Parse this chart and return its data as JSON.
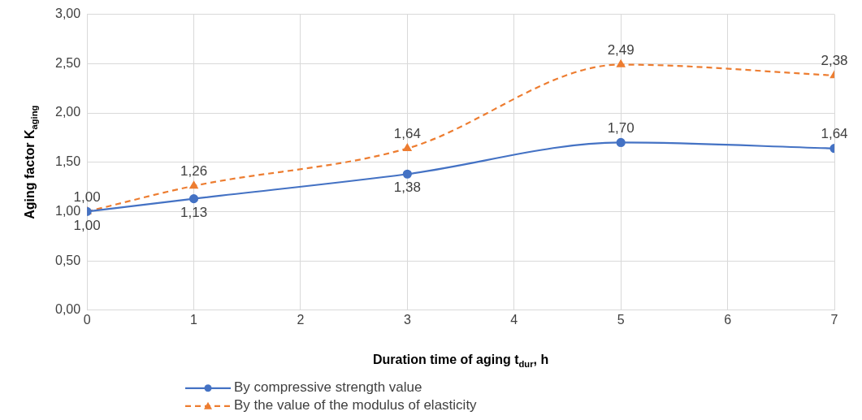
{
  "chart_data": {
    "type": "line",
    "xlabel": "Duration time of aging t$_{dur}$, h",
    "ylabel": "Aging factor K$_{aging}$",
    "x": [
      0,
      1,
      3,
      5,
      7
    ],
    "series": [
      {
        "name": "By compressive strength value",
        "color": "#4472c4",
        "marker": "circle",
        "line_style": "solid",
        "values": [
          1.0,
          1.13,
          1.38,
          1.7,
          1.64
        ],
        "value_labels": [
          "1,00",
          "1,13",
          "1,38",
          "1,70",
          "1,64"
        ]
      },
      {
        "name": "By the value of the modulus of elasticity",
        "color": "#ed7d31",
        "marker": "triangle",
        "line_style": "dashed",
        "values": [
          1.0,
          1.26,
          1.64,
          2.49,
          2.38
        ],
        "value_labels": [
          "1,00",
          "1,26",
          "1,64",
          "2,49",
          "2,38"
        ]
      }
    ],
    "xlim": [
      0,
      7
    ],
    "xticks": [
      0,
      1,
      2,
      3,
      4,
      5,
      6,
      7
    ],
    "ylim": [
      0,
      3
    ],
    "yticks": [
      {
        "value": 0,
        "label": "0,00"
      },
      {
        "value": 0.5,
        "label": "0,50"
      },
      {
        "value": 1,
        "label": "1,00"
      },
      {
        "value": 1.5,
        "label": "1,50"
      },
      {
        "value": 2,
        "label": "2,00"
      },
      {
        "value": 2.5,
        "label": "2,50"
      },
      {
        "value": 3,
        "label": "3,00"
      }
    ],
    "grid": true,
    "legend": "bottom"
  }
}
